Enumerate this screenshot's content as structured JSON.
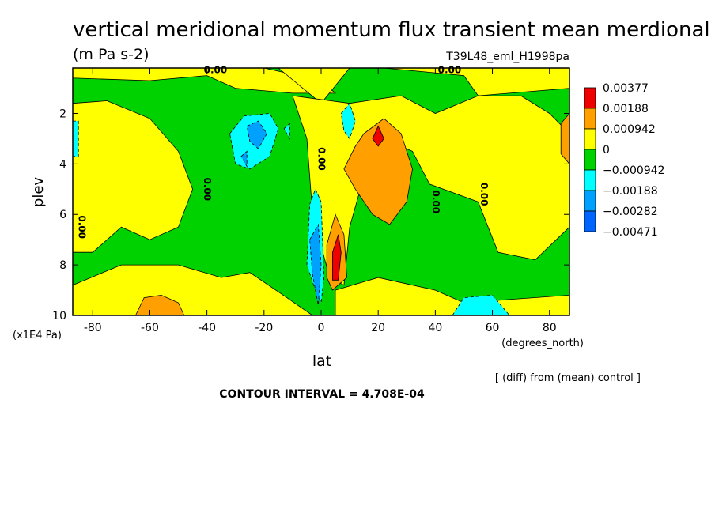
{
  "chart_data": {
    "type": "heatmap",
    "title": "vertical meridional momentum flux transient mean merdional",
    "subtitle": "(m Pa s-2)",
    "experiment": "T39L48_eml_H1998pa",
    "xlabel": "lat",
    "x_units": "(degrees_north)",
    "ylabel": "plev",
    "y_units": "(x1E4 Pa)",
    "xlim": [
      -87,
      87
    ],
    "ylim": [
      0.2,
      10
    ],
    "y_inverted": true,
    "x_ticks": [
      "-80",
      "-60",
      "-40",
      "-20",
      "0",
      "20",
      "40",
      "60",
      "80"
    ],
    "x_tick_values": [
      -80,
      -60,
      -40,
      -20,
      0,
      20,
      40,
      60,
      80
    ],
    "y_ticks": [
      "2",
      "4",
      "6",
      "8",
      "10"
    ],
    "y_tick_values": [
      2,
      4,
      6,
      8,
      10
    ],
    "contour_interval": "CONTOUR INTERVAL = 4.708E-04",
    "note": "[ (diff) from (mean) control ]",
    "contour_labels": [
      {
        "text": "0.00",
        "x": -37,
        "y": 0.3
      },
      {
        "text": "0.00",
        "x": 45,
        "y": 0.3
      },
      {
        "text": "0.00",
        "x": -84,
        "y": 6.5
      },
      {
        "text": "0.00",
        "x": -40,
        "y": 5.0
      },
      {
        "text": "0.00",
        "x": 0,
        "y": 3.8
      },
      {
        "text": "0.00",
        "x": 40,
        "y": 5.5
      },
      {
        "text": "0.00",
        "x": 57,
        "y": 5.2
      }
    ],
    "legend": [
      {
        "label": "0.00377",
        "color": "#ee0000"
      },
      {
        "label": "0.00188",
        "color": "#ffa000"
      },
      {
        "label": "0.000942",
        "color": "#ffff00"
      },
      {
        "label": "0",
        "color": "#00d200"
      },
      {
        "label": "−0.000942",
        "color": "#00ffff"
      },
      {
        "label": "−0.00188",
        "color": "#00a0ff"
      },
      {
        "label": "−0.00282",
        "color": "#0064ff"
      },
      {
        "label": "−0.00471",
        "color": null
      }
    ],
    "background_color": "#00d200",
    "regions": [
      {
        "level": "positive",
        "color": "#ffff00",
        "points": [
          [
            -87,
            0.2
          ],
          [
            -87,
            0.6
          ],
          [
            -60,
            0.7
          ],
          [
            -40,
            0.5
          ],
          [
            -30,
            1.0
          ],
          [
            -10,
            1.2
          ],
          [
            5,
            1.2
          ],
          [
            0,
            0.7
          ],
          [
            -20,
            0.2
          ]
        ]
      },
      {
        "level": "positive",
        "color": "#ffff00",
        "points": [
          [
            -15,
            0.2
          ],
          [
            0,
            1.6
          ],
          [
            10,
            0.2
          ]
        ]
      },
      {
        "level": "positive",
        "color": "#ffff00",
        "points": [
          [
            22,
            0.2
          ],
          [
            50,
            0.5
          ],
          [
            55,
            1.3
          ],
          [
            87,
            1.0
          ],
          [
            87,
            0.2
          ]
        ]
      },
      {
        "level": "positive",
        "color": "#ffff00",
        "points": [
          [
            -87,
            1.6
          ],
          [
            -75,
            1.5
          ],
          [
            -60,
            2.2
          ],
          [
            -50,
            3.5
          ],
          [
            -45,
            5.0
          ],
          [
            -50,
            6.5
          ],
          [
            -60,
            7.0
          ],
          [
            -70,
            6.5
          ],
          [
            -80,
            7.5
          ],
          [
            -87,
            7.5
          ]
        ]
      },
      {
        "level": "positive",
        "color": "#ffff00",
        "points": [
          [
            -10,
            1.3
          ],
          [
            -5,
            3.0
          ],
          [
            -3,
            6.0
          ],
          [
            3,
            8.5
          ],
          [
            8,
            8.8
          ],
          [
            10,
            6.5
          ],
          [
            15,
            4.5
          ],
          [
            22,
            3.0
          ],
          [
            32,
            3.5
          ],
          [
            38,
            4.8
          ],
          [
            55,
            5.5
          ],
          [
            62,
            7.5
          ],
          [
            75,
            7.8
          ],
          [
            87,
            6.5
          ],
          [
            87,
            2.8
          ],
          [
            80,
            2.0
          ],
          [
            70,
            1.3
          ],
          [
            55,
            1.3
          ],
          [
            40,
            2.0
          ],
          [
            28,
            1.3
          ],
          [
            10,
            1.6
          ]
        ]
      },
      {
        "level": "positive",
        "color": "#ffff00",
        "points": [
          [
            -87,
            8.8
          ],
          [
            -70,
            8.0
          ],
          [
            -50,
            8.0
          ],
          [
            -35,
            8.5
          ],
          [
            -25,
            8.3
          ],
          [
            -12,
            9.3
          ],
          [
            -3,
            10
          ],
          [
            -87,
            10
          ]
        ]
      },
      {
        "level": "positive",
        "color": "#ffff00",
        "points": [
          [
            5,
            9.0
          ],
          [
            20,
            8.5
          ],
          [
            40,
            9.0
          ],
          [
            50,
            9.5
          ],
          [
            87,
            9.2
          ],
          [
            87,
            10
          ],
          [
            5,
            10
          ]
        ]
      },
      {
        "level": "positive",
        "color": "#ffa000",
        "points": [
          [
            15,
            2.8
          ],
          [
            22,
            2.2
          ],
          [
            28,
            2.8
          ],
          [
            32,
            4.2
          ],
          [
            30,
            5.5
          ],
          [
            24,
            6.4
          ],
          [
            18,
            6.0
          ],
          [
            12,
            5.0
          ],
          [
            8,
            4.2
          ],
          [
            12,
            3.3
          ]
        ]
      },
      {
        "level": "positive",
        "color": "#ffa000",
        "points": [
          [
            2,
            7.2
          ],
          [
            5,
            6.0
          ],
          [
            8,
            6.8
          ],
          [
            9,
            8.5
          ],
          [
            4,
            9.0
          ],
          [
            2,
            8.5
          ]
        ]
      },
      {
        "level": "positive",
        "color": "#ffa000",
        "points": [
          [
            -65,
            10
          ],
          [
            -62,
            9.3
          ],
          [
            -56,
            9.2
          ],
          [
            -50,
            9.5
          ],
          [
            -48,
            10
          ]
        ]
      },
      {
        "level": "positive",
        "color": "#ffa000",
        "points": [
          [
            84,
            2.4
          ],
          [
            87,
            2.0
          ],
          [
            87,
            4.0
          ],
          [
            84,
            3.6
          ]
        ]
      },
      {
        "level": "positive",
        "color": "#ee0000",
        "points": [
          [
            18,
            3.0
          ],
          [
            20,
            2.5
          ],
          [
            22,
            3.0
          ],
          [
            20,
            3.3
          ]
        ]
      },
      {
        "level": "positive",
        "color": "#ee0000",
        "points": [
          [
            4,
            7.5
          ],
          [
            6,
            6.8
          ],
          [
            7,
            7.5
          ],
          [
            6,
            8.6
          ],
          [
            4,
            8.6
          ]
        ]
      },
      {
        "level": "negative",
        "color": "#00ffff",
        "points": [
          [
            -32,
            2.8
          ],
          [
            -27,
            2.1
          ],
          [
            -18,
            2.0
          ],
          [
            -15,
            2.6
          ],
          [
            -18,
            3.7
          ],
          [
            -25,
            4.2
          ],
          [
            -30,
            4.0
          ]
        ]
      },
      {
        "level": "negative",
        "color": "#00ffff",
        "points": [
          [
            -4,
            5.6
          ],
          [
            -2,
            5.0
          ],
          [
            0,
            5.5
          ],
          [
            1,
            8.5
          ],
          [
            0,
            9.5
          ],
          [
            -2,
            9.0
          ],
          [
            -5,
            8.0
          ]
        ]
      },
      {
        "level": "negative",
        "color": "#00ffff",
        "points": [
          [
            7,
            2.0
          ],
          [
            10,
            1.6
          ],
          [
            12,
            2.3
          ],
          [
            10,
            3.0
          ],
          [
            8,
            2.7
          ]
        ]
      },
      {
        "level": "negative",
        "color": "#00ffff",
        "points": [
          [
            46,
            10
          ],
          [
            50,
            9.3
          ],
          [
            60,
            9.2
          ],
          [
            66,
            10
          ]
        ]
      },
      {
        "level": "negative",
        "color": "#00ffff",
        "points": [
          [
            -87,
            2.3
          ],
          [
            -85,
            2.3
          ],
          [
            -85,
            3.7
          ],
          [
            -87,
            3.7
          ]
        ]
      },
      {
        "level": "negative",
        "color": "#00ffff",
        "points": [
          [
            -13,
            2.6
          ],
          [
            -11,
            2.4
          ],
          [
            -11,
            3.0
          ]
        ]
      },
      {
        "level": "negative",
        "color": "#00a0ff",
        "points": [
          [
            -26,
            2.5
          ],
          [
            -22,
            2.3
          ],
          [
            -19,
            2.8
          ],
          [
            -22,
            3.4
          ],
          [
            -25,
            3.1
          ]
        ]
      },
      {
        "level": "negative",
        "color": "#00a0ff",
        "points": [
          [
            -4,
            7.0
          ],
          [
            -1,
            6.4
          ],
          [
            0,
            8.0
          ],
          [
            -1,
            9.6
          ],
          [
            -3,
            8.4
          ]
        ]
      },
      {
        "level": "negative",
        "color": "#00a0ff",
        "points": [
          [
            -28,
            3.7
          ],
          [
            -26,
            3.5
          ],
          [
            -26,
            4.1
          ]
        ]
      }
    ]
  }
}
